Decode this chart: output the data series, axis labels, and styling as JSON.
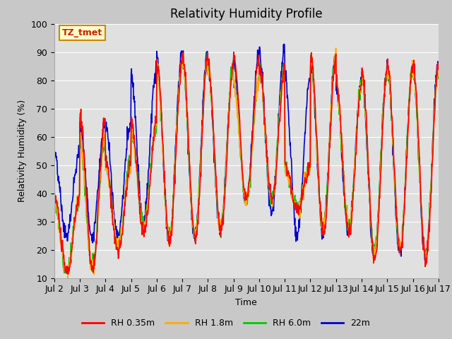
{
  "title": "Relativity Humidity Profile",
  "xlabel": "Time",
  "ylabel": "Relativity Humidity (%)",
  "ylim": [
    10,
    100
  ],
  "xlim": [
    0,
    15
  ],
  "x_tick_labels": [
    "Jul 2",
    "Jul 3",
    "Jul 4",
    "Jul 5",
    "Jul 6",
    "Jul 7",
    "Jul 8",
    "Jul 9",
    "Jul 10",
    "Jul 11",
    "Jul 12",
    "Jul 13",
    "Jul 14",
    "Jul 15",
    "Jul 16",
    "Jul 17"
  ],
  "annotation_text": "TZ_tmet",
  "annotation_color": "#cc2200",
  "annotation_bg": "#ffffcc",
  "annotation_border": "#cc8800",
  "line_colors": [
    "#ff0000",
    "#ffaa00",
    "#00cc00",
    "#0000cc"
  ],
  "line_labels": [
    "RH 0.35m",
    "RH 1.8m",
    "RH 6.0m",
    "22m"
  ],
  "line_width": 1.2,
  "fig_bg": "#c8c8c8",
  "plot_bg": "#e0e0e0",
  "grid_color": "#ffffff",
  "title_fontsize": 12,
  "axis_fontsize": 9,
  "legend_fontsize": 9,
  "peaks_035": [
    39,
    67,
    51,
    65,
    86,
    89,
    85,
    88,
    84,
    50,
    89,
    79,
    84,
    85,
    85,
    62
  ],
  "valleys_035": [
    12,
    13,
    19,
    26,
    23,
    24,
    27,
    38,
    37,
    34,
    26,
    26,
    17,
    20,
    17,
    17
  ],
  "peaks_18": [
    38,
    60,
    50,
    64,
    85,
    88,
    85,
    79,
    83,
    49,
    89,
    79,
    83,
    84,
    84,
    61
  ],
  "valleys_18": [
    12,
    13,
    22,
    27,
    24,
    25,
    27,
    37,
    37,
    34,
    27,
    27,
    19,
    20,
    17,
    17
  ],
  "peaks_60": [
    37,
    59,
    52,
    63,
    85,
    88,
    85,
    79,
    84,
    49,
    88,
    78,
    82,
    84,
    83,
    60
  ],
  "valleys_60": [
    13,
    14,
    22,
    30,
    24,
    25,
    28,
    37,
    38,
    35,
    27,
    28,
    20,
    21,
    18,
    18
  ],
  "peaks_22m": [
    54,
    65,
    65,
    83,
    89,
    90,
    85,
    88,
    91,
    81,
    88,
    79,
    83,
    85,
    85,
    85
  ],
  "valleys_22m": [
    25,
    25,
    25,
    30,
    23,
    24,
    27,
    37,
    33,
    25,
    26,
    26,
    18,
    19,
    17,
    17
  ],
  "n_per_day": 72,
  "n_days": 15
}
